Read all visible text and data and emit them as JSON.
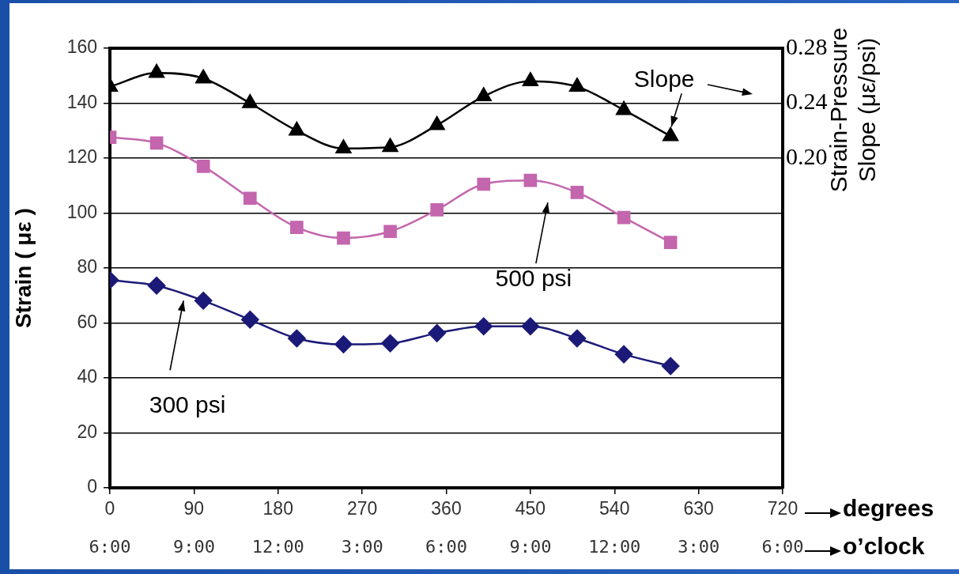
{
  "chart_data": {
    "type": "line",
    "xlabel": "degrees",
    "ylabel": "Strain ( με )",
    "y2label": "Strain-Pressure\nSlope (με/psi)",
    "x": [
      0,
      50,
      100,
      150,
      200,
      250,
      300,
      350,
      400,
      450,
      500,
      550,
      600
    ],
    "series": [
      {
        "name": "Slope",
        "color": "#000000",
        "axis": "y2",
        "marker": "triangle",
        "values": [
          0.252,
          0.262,
          0.258,
          0.24,
          0.22,
          0.207,
          0.208,
          0.224,
          0.245,
          0.256,
          0.252,
          0.235,
          0.216
        ]
      },
      {
        "name": "500 psi",
        "color": "#c366ad",
        "marker": "square",
        "values": [
          127.6,
          125.5,
          117,
          105.4,
          94.8,
          90.9,
          93.3,
          101.2,
          110.5,
          111.9,
          107.5,
          98.4,
          89.3
        ]
      },
      {
        "name": "300 psi",
        "color": "#1c1a78",
        "marker": "diamond",
        "values": [
          75.6,
          73.6,
          68.1,
          61.2,
          54.4,
          52.2,
          52.6,
          56.3,
          58.8,
          58.8,
          54.4,
          48.6,
          44.3
        ]
      }
    ],
    "xlim": [
      0,
      720
    ],
    "xticks": [
      0,
      90,
      180,
      270,
      360,
      450,
      540,
      630,
      720
    ],
    "annotations": [
      "6:00",
      "9:00",
      "12:00",
      "3:00",
      "6:00",
      "9:00",
      "12:00",
      "3:00",
      "6:00",
      "o’clock"
    ],
    "ylim": [
      0,
      160
    ],
    "yticks": [
      0,
      20,
      40,
      60,
      80,
      100,
      120,
      140,
      160
    ],
    "y2lim": [
      -0.04,
      0.28
    ],
    "y2ticks": [
      {
        "value": 0.2,
        "label": "0.20"
      },
      0.24,
      0.28
    ],
    "grid": "y",
    "legend": "top right",
    "line_style": "solid"
  }
}
